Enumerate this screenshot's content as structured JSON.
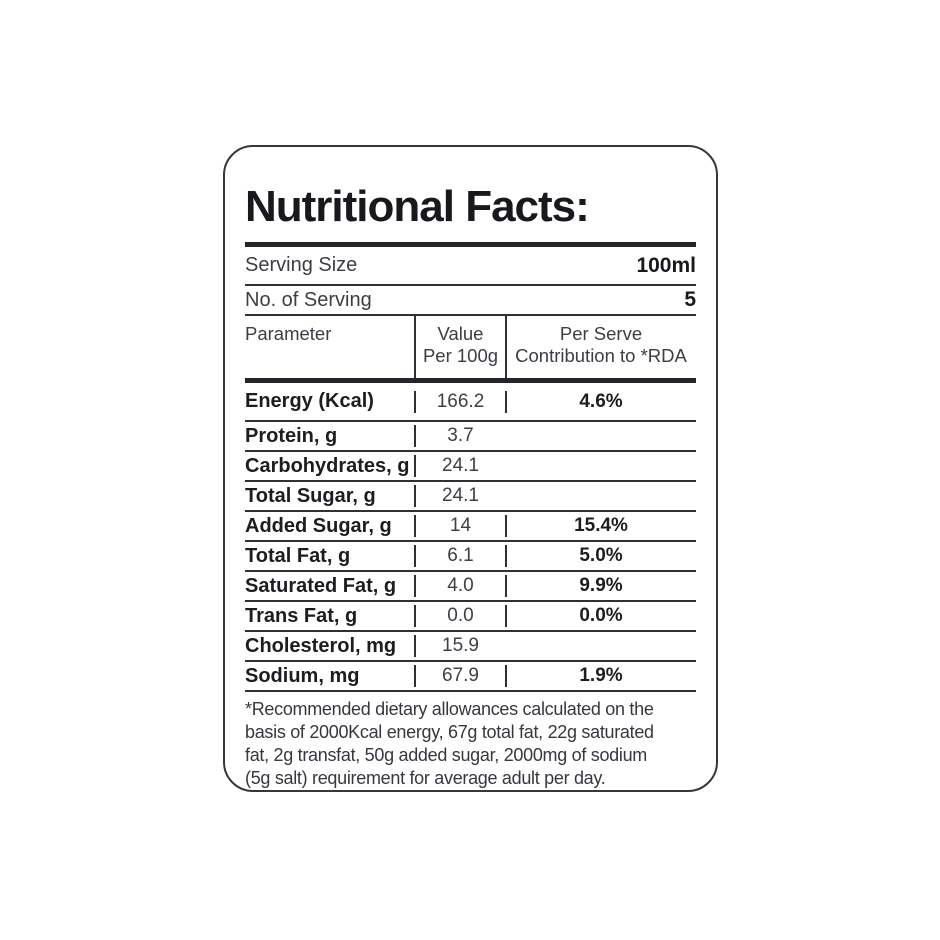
{
  "label": {
    "title": "Nutritional Facts:",
    "serving": [
      {
        "label": "Serving Size",
        "value": "100ml"
      },
      {
        "label": "No. of Serving",
        "value": "5"
      }
    ],
    "table": {
      "header": {
        "parameter": "Parameter",
        "value_line1": "Value",
        "value_line2": "Per 100g",
        "rda_line1": "Per Serve",
        "rda_line2": "Contribution to *RDA"
      },
      "rows": [
        {
          "name": "Energy (Kcal)",
          "value": "166.2",
          "rda": "4.6%"
        },
        {
          "name": "Protein, g",
          "value": "3.7",
          "rda": ""
        },
        {
          "name": "Carbohydrates, g",
          "value": "24.1",
          "rda": ""
        },
        {
          "name": "Total Sugar, g",
          "value": "24.1",
          "rda": ""
        },
        {
          "name": "Added Sugar, g",
          "value": "14",
          "rda": "15.4%"
        },
        {
          "name": "Total Fat, g",
          "value": "6.1",
          "rda": "5.0%"
        },
        {
          "name": "Saturated Fat, g",
          "value": "4.0",
          "rda": "9.9%"
        },
        {
          "name": "Trans Fat, g",
          "value": "0.0",
          "rda": "0.0%"
        },
        {
          "name": "Cholesterol, mg",
          "value": "15.9",
          "rda": ""
        },
        {
          "name": "Sodium, mg",
          "value": "67.9",
          "rda": "1.9%"
        }
      ]
    },
    "footnote": {
      "lines": [
        "*Recommended dietary allowances calculated on the",
        "basis of 2000Kcal energy, 67g total fat, 22g saturated",
        "fat, 2g transfat, 50g added sugar, 2000mg of sodium",
        "(5g salt) requirement for average adult per day."
      ]
    },
    "colors": {
      "ink_dark": "#17191c",
      "ink_gray": "#3b3e44",
      "rule": "#2e3034",
      "background": "#ffffff"
    }
  }
}
